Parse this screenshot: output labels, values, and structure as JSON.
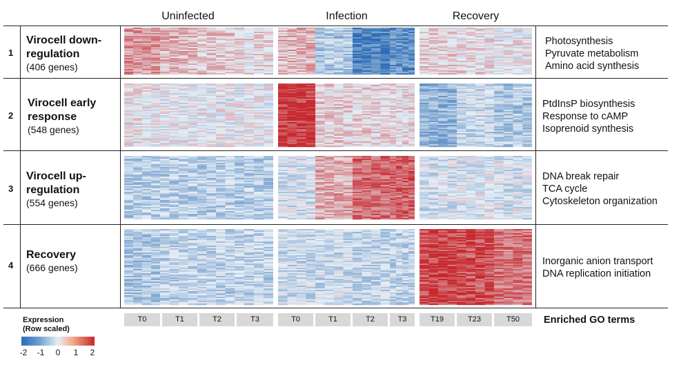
{
  "phases": [
    "Uninfected",
    "Infection",
    "Recovery"
  ],
  "clusters": [
    {
      "num": "1",
      "title_lines": [
        "Virocell down-",
        "regulation"
      ],
      "genes": "(406 genes)",
      "go_terms": [
        "Photosynthesis",
        "Pyruvate metabolism",
        "Amino acid synthesis"
      ]
    },
    {
      "num": "2",
      "title_lines": [
        "Virocell early",
        "response"
      ],
      "genes": "(548 genes)",
      "go_terms": [
        "PtdInsP biosynthesis",
        "Response to cAMP",
        "Isoprenoid synthesis"
      ]
    },
    {
      "num": "3",
      "title_lines": [
        "Virocell up-",
        "regulation"
      ],
      "genes": "(554 genes)",
      "go_terms": [
        "DNA break repair",
        "TCA cycle",
        "Cytoskeleton organization"
      ]
    },
    {
      "num": "4",
      "title_lines": [
        "Recovery"
      ],
      "genes": "(666 genes)",
      "go_terms": [
        "Inorganic anion transport",
        "DNA replication initiation"
      ]
    }
  ],
  "timepoints": {
    "uninfected": [
      "T0",
      "T1",
      "T2",
      "T3"
    ],
    "infection": [
      "T0",
      "T1",
      "T2",
      "T3"
    ],
    "recovery": [
      "T19",
      "T23",
      "T50"
    ]
  },
  "go_header": "Enriched GO terms",
  "legend": {
    "title_line1": "Expression",
    "title_line2": "(Row scaled)",
    "ticks": [
      "-2",
      "-1",
      "0",
      "1",
      "2"
    ],
    "range": [
      -2,
      2
    ],
    "colors": {
      "low": "#2b6cb4",
      "mid": "#e6eef5",
      "high": "#c7282d"
    }
  },
  "chart_data": {
    "type": "heatmap",
    "title": "",
    "value_label": "Expression (Row scaled)",
    "value_range": [
      -2,
      2
    ],
    "groups": [
      {
        "name": "Uninfected",
        "columns": [
          "T0",
          "T1",
          "T2",
          "T3"
        ]
      },
      {
        "name": "Infection",
        "columns": [
          "T0",
          "T1",
          "T2",
          "T3"
        ]
      },
      {
        "name": "Recovery",
        "columns": [
          "T19",
          "T23",
          "T50"
        ]
      }
    ],
    "note": "Approximate mean row-scaled expression per cluster and time point (read from color)",
    "rows": [
      {
        "cluster": "Virocell down-regulation",
        "values": [
          0.9,
          0.6,
          0.4,
          0.2,
          0.6,
          -0.6,
          -1.6,
          -1.4,
          0.3,
          0.2,
          0.1
        ]
      },
      {
        "cluster": "Virocell early response",
        "values": [
          0.1,
          0.0,
          0.0,
          0.0,
          1.8,
          0.3,
          0.3,
          0.2,
          -0.9,
          -0.3,
          -0.6
        ]
      },
      {
        "cluster": "Virocell up-regulation",
        "values": [
          -0.5,
          -0.5,
          -0.5,
          -0.5,
          -0.2,
          0.7,
          1.3,
          1.4,
          -0.2,
          -0.1,
          -0.2
        ]
      },
      {
        "cluster": "Recovery",
        "values": [
          -0.6,
          -0.4,
          -0.4,
          -0.4,
          -0.3,
          -0.3,
          -0.4,
          -0.4,
          1.7,
          1.6,
          1.2
        ]
      }
    ]
  }
}
